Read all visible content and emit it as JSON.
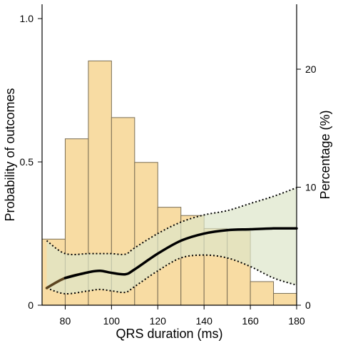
{
  "chart_data": {
    "type": "bar",
    "xlabel": "QRS duration (ms)",
    "ylabel": "Probability of outcomes",
    "y2label": "Percentage (%)",
    "xlim": [
      70,
      180
    ],
    "ylim": [
      0,
      1.05
    ],
    "y2lim": [
      0,
      25.5
    ],
    "x_ticks": [
      80,
      100,
      120,
      140,
      160,
      180
    ],
    "y_ticks": [
      0,
      0.5,
      1.0
    ],
    "y_tick_labels": [
      "0",
      "0.5",
      "1.0"
    ],
    "y2_ticks": [
      0,
      10,
      20
    ],
    "grid": false,
    "colors": {
      "bar_fill": "#f8dca3",
      "bar_edge": "#7a6e55",
      "band_fill": "#dde5c9",
      "curve": "#000000",
      "curve_start": "#5b4420"
    },
    "histogram": {
      "name": "Percentage (%)",
      "axis": "right",
      "bins": [
        {
          "from": 70,
          "to": 80,
          "value": 5.6
        },
        {
          "from": 80,
          "to": 90,
          "value": 14.1
        },
        {
          "from": 90,
          "to": 100,
          "value": 20.7
        },
        {
          "from": 100,
          "to": 110,
          "value": 15.9
        },
        {
          "from": 110,
          "to": 120,
          "value": 12.1
        },
        {
          "from": 120,
          "to": 130,
          "value": 8.3
        },
        {
          "from": 130,
          "to": 140,
          "value": 7.6
        },
        {
          "from": 140,
          "to": 150,
          "value": 6.5
        },
        {
          "from": 150,
          "to": 160,
          "value": 6.3
        },
        {
          "from": 160,
          "to": 170,
          "value": 2.0
        },
        {
          "from": 170,
          "to": 180,
          "value": 1.0
        }
      ]
    },
    "probability_curve": {
      "axis": "left",
      "x": [
        72,
        80,
        90,
        95,
        100,
        106,
        110,
        120,
        130,
        140,
        150,
        160,
        170,
        180
      ],
      "y": [
        0.06,
        0.095,
        0.115,
        0.12,
        0.113,
        0.108,
        0.125,
        0.18,
        0.225,
        0.25,
        0.262,
        0.265,
        0.268,
        0.268
      ],
      "lower": [
        0.06,
        0.04,
        0.05,
        0.055,
        0.05,
        0.045,
        0.065,
        0.12,
        0.165,
        0.175,
        0.165,
        0.135,
        0.095,
        0.07
      ],
      "upper": [
        0.225,
        0.18,
        0.18,
        0.18,
        0.18,
        0.178,
        0.2,
        0.25,
        0.29,
        0.315,
        0.33,
        0.355,
        0.38,
        0.41
      ]
    }
  }
}
